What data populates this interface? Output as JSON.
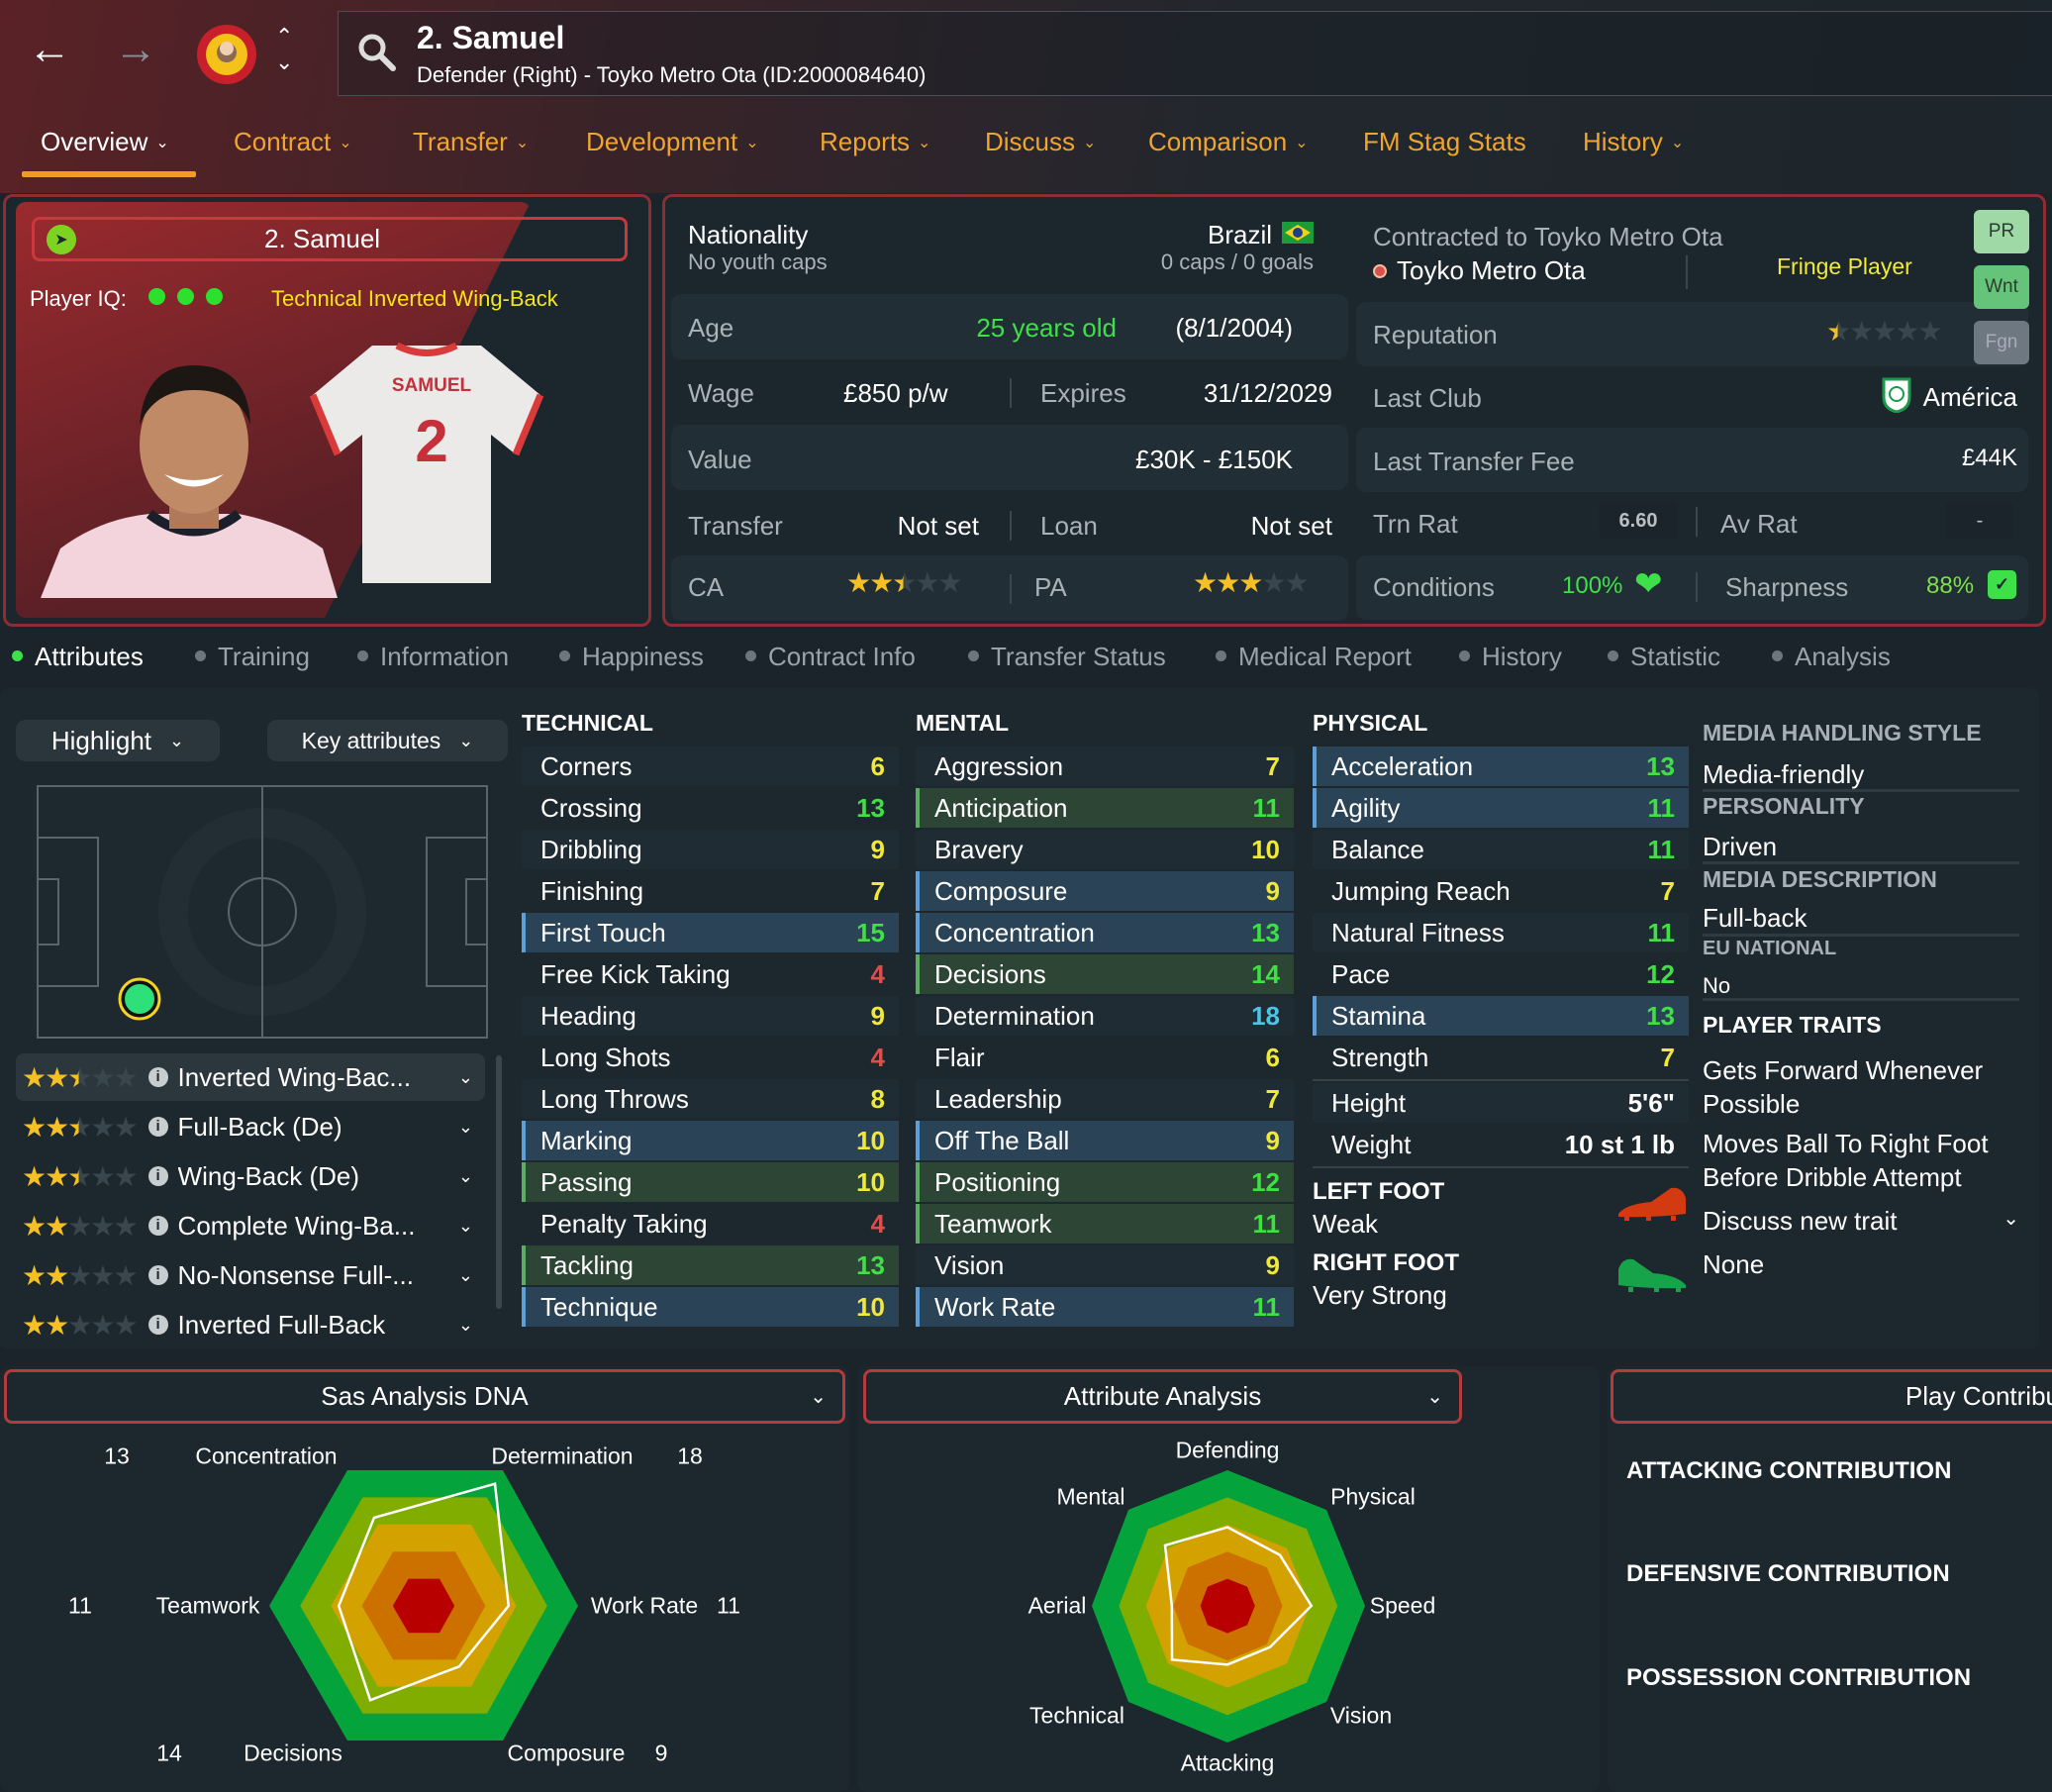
{
  "header": {
    "title": "2. Samuel",
    "subtitle": "Defender (Right) - Toyko Metro Ota (ID:2000084640)",
    "icons": [
      "back-arrow-icon",
      "forward-arrow-icon",
      "club-badge-icon",
      "up-down-chevron-icon",
      "search-icon"
    ]
  },
  "nav": [
    {
      "label": "Overview",
      "active": true
    },
    {
      "label": "Contract"
    },
    {
      "label": "Transfer"
    },
    {
      "label": "Development"
    },
    {
      "label": "Reports"
    },
    {
      "label": "Discuss"
    },
    {
      "label": "Comparison"
    },
    {
      "label": "FM Stag Stats",
      "no_chevron": true
    },
    {
      "label": "History"
    }
  ],
  "card": {
    "name": "2. Samuel",
    "iq_label": "Player IQ:",
    "iq_dots": 3,
    "role": "Technical Inverted Wing-Back",
    "shirt_name": "SAMUEL",
    "shirt_number": "2"
  },
  "info": {
    "nationality_label": "Nationality",
    "youth_caps": "No youth caps",
    "nation": "Brazil",
    "caps": "0 caps / 0 goals",
    "age_label": "Age",
    "age": "25 years old",
    "dob": "(8/1/2004)",
    "wage_label": "Wage",
    "wage": "£850 p/w",
    "expires_label": "Expires",
    "expires": "31/12/2029",
    "value_label": "Value",
    "value": "£30K - £150K",
    "transfer_label": "Transfer",
    "transfer": "Not set",
    "loan_label": "Loan",
    "loan": "Not set",
    "ca_label": "CA",
    "ca_stars": 2.5,
    "pa_label": "PA",
    "pa_stars": 3,
    "contracted": "Contracted to Toyko Metro Ota",
    "club": "Toyko Metro Ota",
    "squad_status": "Fringe Player",
    "reputation_label": "Reputation",
    "reputation_stars": 0.5,
    "last_club_label": "Last Club",
    "last_club": "América",
    "last_fee_label": "Last Transfer Fee",
    "last_fee": "£44K",
    "trn_rat_label": "Trn Rat",
    "trn_rat": "6.60",
    "av_rat_label": "Av Rat",
    "av_rat": "-",
    "conditions_label": "Conditions",
    "conditions": "100%",
    "sharpness_label": "Sharpness",
    "sharpness": "88%",
    "badges": [
      {
        "label": "PR",
        "color": "#9fd9a6"
      },
      {
        "label": "Wnt",
        "color": "#66c47a"
      },
      {
        "label": "Fgn",
        "color": "#6e7880"
      }
    ]
  },
  "subtabs": [
    "Attributes",
    "Training",
    "Information",
    "Happiness",
    "Contract Info",
    "Transfer Status",
    "Medical Report",
    "History",
    "Statistic",
    "Analysis"
  ],
  "controls": {
    "highlight": "Highlight",
    "key_attributes": "Key attributes"
  },
  "roles": [
    {
      "name": "Inverted Wing-Bac...",
      "stars": 2.5
    },
    {
      "name": "Full-Back (De)",
      "stars": 2.5
    },
    {
      "name": "Wing-Back (De)",
      "stars": 2.5
    },
    {
      "name": "Complete Wing-Ba...",
      "stars": 2
    },
    {
      "name": "No-Nonsense Full-...",
      "stars": 2
    },
    {
      "name": "Inverted Full-Back",
      "stars": 2
    }
  ],
  "attributes": {
    "technical": {
      "title": "TECHNICAL",
      "items": [
        {
          "name": "Corners",
          "value": 6
        },
        {
          "name": "Crossing",
          "value": 13
        },
        {
          "name": "Dribbling",
          "value": 9
        },
        {
          "name": "Finishing",
          "value": 7
        },
        {
          "name": "First Touch",
          "value": 15,
          "hl": "blue"
        },
        {
          "name": "Free Kick Taking",
          "value": 4
        },
        {
          "name": "Heading",
          "value": 9
        },
        {
          "name": "Long Shots",
          "value": 4
        },
        {
          "name": "Long Throws",
          "value": 8
        },
        {
          "name": "Marking",
          "value": 10,
          "hl": "blue"
        },
        {
          "name": "Passing",
          "value": 10,
          "hl": "green"
        },
        {
          "name": "Penalty Taking",
          "value": 4
        },
        {
          "name": "Tackling",
          "value": 13,
          "hl": "green"
        },
        {
          "name": "Technique",
          "value": 10,
          "hl": "blue"
        }
      ]
    },
    "mental": {
      "title": "MENTAL",
      "items": [
        {
          "name": "Aggression",
          "value": 7
        },
        {
          "name": "Anticipation",
          "value": 11,
          "hl": "green"
        },
        {
          "name": "Bravery",
          "value": 10
        },
        {
          "name": "Composure",
          "value": 9,
          "hl": "blue"
        },
        {
          "name": "Concentration",
          "value": 13,
          "hl": "blue"
        },
        {
          "name": "Decisions",
          "value": 14,
          "hl": "green"
        },
        {
          "name": "Determination",
          "value": 18
        },
        {
          "name": "Flair",
          "value": 6
        },
        {
          "name": "Leadership",
          "value": 7
        },
        {
          "name": "Off The Ball",
          "value": 9,
          "hl": "blue"
        },
        {
          "name": "Positioning",
          "value": 12,
          "hl": "green"
        },
        {
          "name": "Teamwork",
          "value": 11,
          "hl": "green"
        },
        {
          "name": "Vision",
          "value": 9
        },
        {
          "name": "Work Rate",
          "value": 11,
          "hl": "blue"
        }
      ]
    },
    "physical": {
      "title": "PHYSICAL",
      "items": [
        {
          "name": "Acceleration",
          "value": 13,
          "hl": "blue"
        },
        {
          "name": "Agility",
          "value": 11,
          "hl": "blue"
        },
        {
          "name": "Balance",
          "value": 11
        },
        {
          "name": "Jumping Reach",
          "value": 7
        },
        {
          "name": "Natural Fitness",
          "value": 11
        },
        {
          "name": "Pace",
          "value": 12
        },
        {
          "name": "Stamina",
          "value": 13,
          "hl": "blue"
        },
        {
          "name": "Strength",
          "value": 7
        }
      ]
    },
    "height_label": "Height",
    "height": "5'6\"",
    "weight_label": "Weight",
    "weight": "10 st 1 lb",
    "left_foot_label": "LEFT FOOT",
    "left_foot": "Weak",
    "right_foot_label": "RIGHT FOOT",
    "right_foot": "Very Strong"
  },
  "profile": {
    "media_style_label": "MEDIA HANDLING STYLE",
    "media_style": "Media-friendly",
    "personality_label": "PERSONALITY",
    "personality": "Driven",
    "media_desc_label": "MEDIA DESCRIPTION",
    "media_desc": "Full-back",
    "eu_label": "EU NATIONAL",
    "eu": "No",
    "traits_label": "PLAYER TRAITS",
    "traits": [
      "Gets Forward Whenever Possible",
      "Moves Ball To Right Foot Before Dribble Attempt"
    ],
    "discuss": "Discuss new trait",
    "discuss_value": "None"
  },
  "dna": {
    "title": "Sas Analysis DNA",
    "max": 20,
    "axes": [
      {
        "name": "Concentration",
        "value": 13
      },
      {
        "name": "Determination",
        "value": 18
      },
      {
        "name": "Work Rate",
        "value": 11
      },
      {
        "name": "Composure",
        "value": 9
      },
      {
        "name": "Decisions",
        "value": 14
      },
      {
        "name": "Teamwork",
        "value": 11
      }
    ]
  },
  "attr_analysis": {
    "title": "Attribute Analysis",
    "axes": [
      {
        "name": "Defending",
        "level": 0.58
      },
      {
        "name": "Physical",
        "level": 0.53
      },
      {
        "name": "Speed",
        "level": 0.61
      },
      {
        "name": "Vision",
        "level": 0.43
      },
      {
        "name": "Attacking",
        "level": 0.43
      },
      {
        "name": "Technical",
        "level": 0.56
      },
      {
        "name": "Aerial",
        "level": 0.41
      },
      {
        "name": "Mental",
        "level": 0.63
      }
    ]
  },
  "contribution": {
    "title": "Play Contributi",
    "labels": [
      "ATTACKING CONTRIBUTION",
      "DEFENSIVE CONTRIBUTION",
      "POSSESSION CONTRIBUTION"
    ]
  },
  "colors": {
    "accent": "#f39c24",
    "nav": "#f0a531",
    "panel_border": "#8e2e32",
    "good": "#3fe044",
    "mid": "#f0e83a",
    "bad": "#d9504c",
    "elite": "#4cc4e8"
  }
}
